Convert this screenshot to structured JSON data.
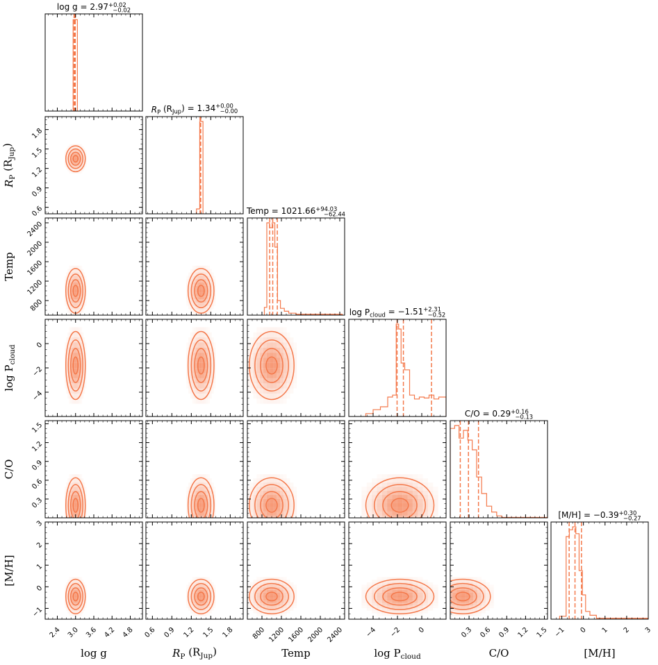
{
  "chart_data": {
    "type": "corner",
    "title": "",
    "colors": {
      "main": "#F4784A",
      "fill_light": "#FDE6DC",
      "fill_mid": "#F9B79A",
      "fill_dark": "#F1855B",
      "axes": "#000000",
      "background": "#ffffff"
    },
    "parameters": [
      {
        "name": "log_g",
        "label_main": "log g",
        "label_sub": "",
        "label_tail": "",
        "range": [
          2.0,
          5.2
        ],
        "ticks": [
          2.4,
          3.0,
          3.6,
          4.2,
          4.8
        ],
        "tick_labels": [
          "2.4",
          "3.0",
          "3.6",
          "4.2",
          "4.8"
        ],
        "title_prefix": "log g = ",
        "title_value": "2.97",
        "title_plus": "+0.02",
        "title_minus": "−0.02",
        "median": 2.97,
        "lower": 2.95,
        "upper": 2.99,
        "hist": {
          "bins": [
            [
              2.92,
              3.06,
              0.94
            ]
          ]
        },
        "center": 3.0,
        "spread": 0.16
      },
      {
        "name": "R_P",
        "label_main": "R",
        "label_sub": "P",
        "label_tail": " (R",
        "label_tail_sub": "Jup",
        "label_close": ")",
        "range": [
          0.5,
          2.0
        ],
        "ticks": [
          0.6,
          0.9,
          1.2,
          1.5,
          1.8
        ],
        "tick_labels": [
          "0.6",
          "0.9",
          "1.2",
          "1.5",
          "1.8"
        ],
        "title_prefix": "R",
        "title_sub": "P",
        "title_mid": " (R",
        "title_sub2": "Jup",
        "title_close": ") = ",
        "title_value": "1.34",
        "title_plus": "+0.00",
        "title_minus": "−0.00",
        "median": 1.34,
        "lower": 1.335,
        "upper": 1.345,
        "hist": {
          "bins": [
            [
              1.28,
              1.33,
              0.05
            ],
            [
              1.33,
              1.38,
              0.95
            ]
          ]
        },
        "center": 1.35,
        "spread": 0.1
      },
      {
        "name": "Temp",
        "label_main": "Temp",
        "label_sub": "",
        "label_tail": "",
        "range": [
          500,
          2500
        ],
        "ticks": [
          800,
          1200,
          1600,
          2000,
          2400
        ],
        "tick_labels": [
          "800",
          "1200",
          "1600",
          "2000",
          "2400"
        ],
        "title_prefix": "Temp = ",
        "title_value": "1021.66",
        "title_plus": "+94.03",
        "title_minus": "−62.44",
        "median": 1021.66,
        "lower": 959.22,
        "upper": 1115.69,
        "hist": {
          "bins": [
            [
              850,
              900,
              0.08
            ],
            [
              900,
              955,
              0.95
            ],
            [
              955,
              1010,
              0.9
            ],
            [
              1010,
              1065,
              0.95
            ],
            [
              1065,
              1120,
              0.7
            ],
            [
              1120,
              1180,
              0.15
            ],
            [
              1180,
              1260,
              0.07
            ],
            [
              1260,
              1350,
              0.04
            ],
            [
              1350,
              1500,
              0.02
            ],
            [
              1500,
              2450,
              0.01
            ]
          ]
        },
        "center": 1000,
        "spread": 230
      },
      {
        "name": "logPcloud",
        "label_main": "log P",
        "label_sub": "cloud",
        "label_tail": "",
        "range": [
          -6,
          2
        ],
        "ticks": [
          -4,
          -2,
          0
        ],
        "tick_labels": [
          "−4",
          "−2",
          "0"
        ],
        "title_prefix": "log P",
        "title_sub": "cloud",
        "title_mid2": " = ",
        "title_value": "−1.51",
        "title_plus": "+2.31",
        "title_minus": "−0.52",
        "median": -1.51,
        "lower": -2.03,
        "upper": 0.8,
        "hist": {
          "bins": [
            [
              -4.6,
              -4.0,
              0.03
            ],
            [
              -4.0,
              -3.4,
              0.07
            ],
            [
              -3.4,
              -2.8,
              0.1
            ],
            [
              -2.8,
              -2.4,
              0.2
            ],
            [
              -2.4,
              -2.1,
              0.22
            ],
            [
              -2.1,
              -1.9,
              0.95
            ],
            [
              -1.9,
              -1.7,
              0.9
            ],
            [
              -1.7,
              -1.4,
              0.55
            ],
            [
              -1.4,
              -1.0,
              0.48
            ],
            [
              -1.0,
              -0.6,
              0.22
            ],
            [
              -0.6,
              -0.2,
              0.18
            ],
            [
              -0.2,
              0.2,
              0.2
            ],
            [
              0.2,
              0.6,
              0.19
            ],
            [
              0.6,
              1.0,
              0.22
            ],
            [
              1.0,
              1.4,
              0.18
            ],
            [
              1.4,
              2.0,
              0.2
            ]
          ]
        },
        "center": -1.8,
        "spread": 1.4
      },
      {
        "name": "CO",
        "label_main": "C/O",
        "label_sub": "",
        "label_tail": "",
        "range": [
          0.0,
          1.55
        ],
        "ticks": [
          0.3,
          0.6,
          0.9,
          1.2,
          1.5
        ],
        "tick_labels": [
          "0.3",
          "0.6",
          "0.9",
          "1.2",
          "1.5"
        ],
        "title_prefix": "C/O = ",
        "title_value": "0.29",
        "title_plus": "+0.16",
        "title_minus": "−0.13",
        "median": 0.29,
        "lower": 0.16,
        "upper": 0.45,
        "hist": {
          "bins": [
            [
              0.0,
              0.07,
              0.92
            ],
            [
              0.07,
              0.14,
              0.95
            ],
            [
              0.14,
              0.21,
              0.82
            ],
            [
              0.21,
              0.28,
              0.9
            ],
            [
              0.28,
              0.35,
              0.8
            ],
            [
              0.35,
              0.42,
              0.7
            ],
            [
              0.42,
              0.5,
              0.42
            ],
            [
              0.5,
              0.58,
              0.25
            ],
            [
              0.58,
              0.66,
              0.12
            ],
            [
              0.66,
              0.74,
              0.06
            ],
            [
              0.74,
              0.82,
              0.02
            ],
            [
              0.82,
              1.55,
              0.005
            ]
          ]
        },
        "center": 0.2,
        "spread": 0.22
      },
      {
        "name": "MH",
        "label_main": "[M/H]",
        "label_sub": "",
        "label_tail": "",
        "range": [
          -1.5,
          3.0
        ],
        "ticks": [
          -1,
          0,
          1,
          2,
          3
        ],
        "tick_labels": [
          "−1",
          "0",
          "1",
          "2",
          "3"
        ],
        "title_prefix": "[M/H] = ",
        "title_value": "−0.39",
        "title_plus": "+0.30",
        "title_minus": "−0.27",
        "median": -0.39,
        "lower": -0.66,
        "upper": -0.09,
        "hist": {
          "bins": [
            [
              -1.1,
              -0.8,
              0.03
            ],
            [
              -0.8,
              -0.65,
              0.85
            ],
            [
              -0.65,
              -0.5,
              0.92
            ],
            [
              -0.5,
              -0.35,
              0.95
            ],
            [
              -0.35,
              -0.2,
              0.88
            ],
            [
              -0.2,
              -0.05,
              0.5
            ],
            [
              -0.05,
              0.1,
              0.25
            ],
            [
              0.1,
              0.3,
              0.08
            ],
            [
              0.3,
              0.6,
              0.04
            ],
            [
              0.6,
              3.0,
              0.01
            ]
          ]
        },
        "center": -0.45,
        "spread": 0.4
      }
    ],
    "contour_levels": [
      0.5,
      1.0,
      1.5,
      2.0
    ]
  }
}
